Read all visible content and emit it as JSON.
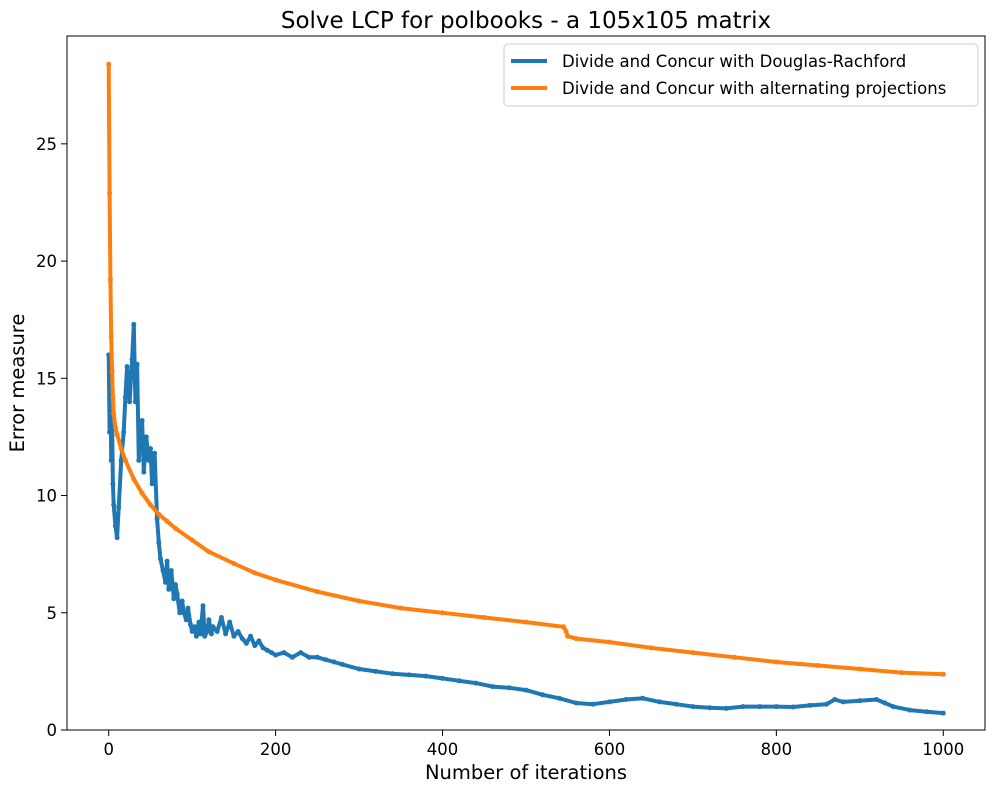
{
  "chart_data": {
    "type": "line",
    "title": "Solve LCP for polbooks - a 105x105 matrix",
    "xlabel": "Number of iterations",
    "ylabel": "Error measure",
    "xlim": [
      -50,
      1050
    ],
    "ylim": [
      0,
      29.6
    ],
    "xticks": [
      0,
      200,
      400,
      600,
      800,
      1000
    ],
    "yticks": [
      0,
      5,
      10,
      15,
      20,
      25
    ],
    "legend_position": "top-right",
    "grid": false,
    "series": [
      {
        "name": "Divide and Concur with Douglas-Rachford",
        "color": "#1f77b4",
        "x": [
          0,
          1,
          2,
          3,
          4,
          5,
          6,
          8,
          10,
          12,
          15,
          18,
          20,
          22,
          25,
          28,
          30,
          32,
          34,
          36,
          38,
          40,
          42,
          45,
          48,
          50,
          52,
          55,
          58,
          60,
          62,
          65,
          68,
          70,
          72,
          75,
          78,
          80,
          82,
          85,
          88,
          90,
          93,
          95,
          98,
          100,
          103,
          105,
          108,
          110,
          113,
          115,
          118,
          120,
          123,
          125,
          130,
          135,
          140,
          145,
          150,
          155,
          160,
          165,
          170,
          175,
          180,
          185,
          190,
          195,
          200,
          210,
          220,
          230,
          240,
          250,
          260,
          270,
          280,
          300,
          320,
          340,
          360,
          380,
          400,
          420,
          440,
          460,
          480,
          500,
          520,
          540,
          560,
          580,
          600,
          620,
          640,
          660,
          680,
          700,
          720,
          740,
          760,
          780,
          800,
          820,
          840,
          860,
          870,
          880,
          900,
          920,
          930,
          940,
          960,
          980,
          1000
        ],
        "y": [
          16.0,
          12.7,
          14.8,
          11.5,
          13.0,
          10.5,
          9.6,
          8.7,
          8.2,
          9.5,
          11.5,
          12.7,
          14.2,
          15.5,
          14.0,
          15.8,
          17.3,
          14.0,
          15.6,
          11.5,
          12.8,
          13.2,
          11.0,
          12.5,
          11.5,
          12.0,
          10.5,
          11.8,
          9.0,
          8.0,
          7.3,
          6.8,
          6.3,
          7.2,
          6.0,
          6.8,
          5.6,
          6.2,
          5.8,
          5.0,
          5.5,
          5.0,
          4.7,
          5.2,
          4.5,
          4.2,
          4.4,
          4.0,
          4.6,
          4.1,
          5.3,
          4.0,
          4.2,
          4.7,
          4.1,
          4.4,
          4.2,
          4.8,
          4.1,
          4.6,
          4.0,
          4.2,
          3.9,
          3.7,
          4.0,
          3.6,
          3.8,
          3.5,
          3.4,
          3.3,
          3.2,
          3.3,
          3.1,
          3.3,
          3.1,
          3.1,
          3.0,
          2.9,
          2.8,
          2.6,
          2.5,
          2.4,
          2.35,
          2.3,
          2.2,
          2.1,
          2.0,
          1.85,
          1.8,
          1.7,
          1.5,
          1.35,
          1.15,
          1.1,
          1.2,
          1.3,
          1.35,
          1.2,
          1.1,
          1.0,
          0.95,
          0.92,
          1.0,
          1.0,
          1.0,
          0.98,
          1.05,
          1.1,
          1.3,
          1.2,
          1.25,
          1.3,
          1.15,
          1.0,
          0.85,
          0.78,
          0.72
        ]
      },
      {
        "name": "Divide and Concur with alternating projections",
        "color": "#ff7f0e",
        "x": [
          0,
          1,
          2,
          3,
          4,
          5,
          6,
          8,
          10,
          15,
          20,
          30,
          40,
          50,
          60,
          70,
          80,
          100,
          120,
          150,
          175,
          200,
          250,
          300,
          350,
          400,
          450,
          500,
          545,
          548,
          550,
          560,
          600,
          650,
          700,
          750,
          800,
          850,
          900,
          950,
          1000
        ],
        "y": [
          28.4,
          22.9,
          19.2,
          16.8,
          15.3,
          14.2,
          13.5,
          12.9,
          12.6,
          12.0,
          11.5,
          10.7,
          10.1,
          9.6,
          9.2,
          8.9,
          8.6,
          8.1,
          7.6,
          7.1,
          6.7,
          6.4,
          5.9,
          5.5,
          5.2,
          5.0,
          4.8,
          4.6,
          4.4,
          4.2,
          4.0,
          3.9,
          3.75,
          3.5,
          3.3,
          3.1,
          2.9,
          2.75,
          2.6,
          2.45,
          2.38
        ]
      }
    ]
  }
}
